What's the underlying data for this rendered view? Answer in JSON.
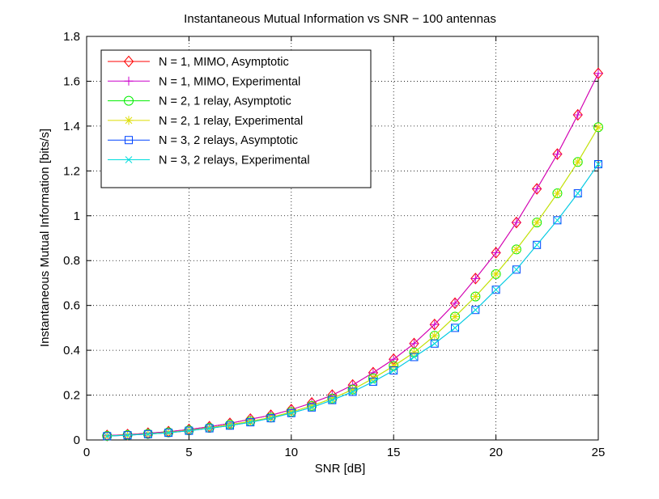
{
  "chart_data": {
    "type": "line",
    "title": "Instantaneous Mutual Information vs SNR − 100 antennas",
    "xlabel": "SNR [dB]",
    "ylabel": "Instantaneous Mutual Information [bits/s]",
    "xlim": [
      0,
      25
    ],
    "ylim": [
      0,
      1.8
    ],
    "xticks": [
      0,
      5,
      10,
      15,
      20,
      25
    ],
    "xtick_labels": [
      "0",
      "5",
      "10",
      "15",
      "20",
      "25"
    ],
    "yticks": [
      0,
      0.2,
      0.4,
      0.6,
      0.8,
      1,
      1.2,
      1.4,
      1.6,
      1.8
    ],
    "ytick_labels": [
      "0",
      "0.2",
      "0.4",
      "0.6",
      "0.8",
      "1",
      "1.2",
      "1.4",
      "1.6",
      "1.8"
    ],
    "grid": true,
    "legend_position": "top-left",
    "x": [
      1,
      2,
      3,
      4,
      5,
      6,
      7,
      8,
      9,
      10,
      11,
      12,
      13,
      14,
      15,
      16,
      17,
      18,
      19,
      20,
      21,
      22,
      23,
      24,
      25
    ],
    "series": [
      {
        "name": "N = 1, MIMO, Asymptotic",
        "color": "#ff0000",
        "marker": "diamond",
        "values": [
          0.02,
          0.024,
          0.03,
          0.037,
          0.047,
          0.059,
          0.074,
          0.093,
          0.11,
          0.135,
          0.165,
          0.2,
          0.245,
          0.3,
          0.36,
          0.43,
          0.515,
          0.61,
          0.72,
          0.835,
          0.97,
          1.12,
          1.275,
          1.45,
          1.635
        ]
      },
      {
        "name": "N = 1, MIMO, Experimental",
        "color": "#cc00cc",
        "marker": "plus",
        "values": [
          0.02,
          0.024,
          0.03,
          0.037,
          0.047,
          0.059,
          0.074,
          0.093,
          0.11,
          0.135,
          0.165,
          0.2,
          0.245,
          0.3,
          0.36,
          0.43,
          0.515,
          0.61,
          0.72,
          0.835,
          0.97,
          1.12,
          1.275,
          1.45,
          1.635
        ]
      },
      {
        "name": "N = 2, 1 relay, Asymptotic",
        "color": "#00ee00",
        "marker": "circle",
        "values": [
          0.018,
          0.022,
          0.027,
          0.034,
          0.043,
          0.054,
          0.068,
          0.083,
          0.1,
          0.125,
          0.152,
          0.185,
          0.225,
          0.275,
          0.33,
          0.39,
          0.465,
          0.55,
          0.64,
          0.74,
          0.85,
          0.97,
          1.1,
          1.24,
          1.395
        ]
      },
      {
        "name": "N = 2, 1 relay, Experimental",
        "color": "#dddd00",
        "marker": "asterisk",
        "values": [
          0.018,
          0.022,
          0.027,
          0.034,
          0.043,
          0.054,
          0.068,
          0.083,
          0.1,
          0.125,
          0.152,
          0.185,
          0.225,
          0.275,
          0.33,
          0.39,
          0.465,
          0.55,
          0.64,
          0.74,
          0.85,
          0.97,
          1.1,
          1.24,
          1.395
        ]
      },
      {
        "name": "N = 3, 2 relays, Asymptotic",
        "color": "#0044ff",
        "marker": "square",
        "values": [
          0.017,
          0.021,
          0.026,
          0.032,
          0.041,
          0.052,
          0.064,
          0.079,
          0.097,
          0.12,
          0.145,
          0.178,
          0.215,
          0.26,
          0.31,
          0.37,
          0.43,
          0.5,
          0.58,
          0.67,
          0.76,
          0.87,
          0.98,
          1.1,
          1.23
        ]
      },
      {
        "name": "N = 3, 2 relays, Experimental",
        "color": "#00dddd",
        "marker": "x",
        "values": [
          0.017,
          0.021,
          0.026,
          0.032,
          0.041,
          0.052,
          0.064,
          0.079,
          0.097,
          0.12,
          0.145,
          0.178,
          0.215,
          0.26,
          0.31,
          0.37,
          0.43,
          0.5,
          0.58,
          0.67,
          0.76,
          0.87,
          0.98,
          1.1,
          1.23
        ]
      }
    ]
  }
}
